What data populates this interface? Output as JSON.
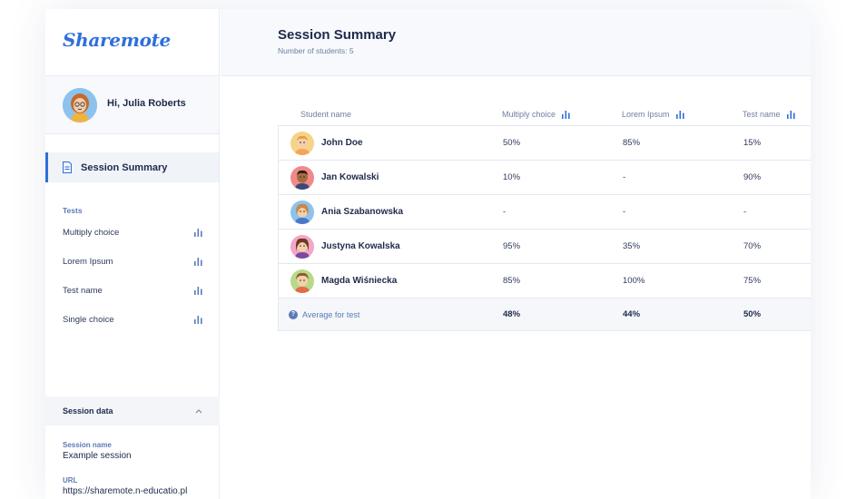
{
  "app": {
    "logo": "Sharemote"
  },
  "user": {
    "greeting": "Hi, Julia Roberts"
  },
  "nav": {
    "active_label": "Session Summary"
  },
  "tests": {
    "title": "Tests",
    "items": [
      {
        "label": "Multiply choice"
      },
      {
        "label": "Lorem Ipsum"
      },
      {
        "label": "Test name"
      },
      {
        "label": "Single choice"
      }
    ]
  },
  "session_data": {
    "title": "Session data",
    "name_label": "Session name",
    "name_value": "Example session",
    "url_label": "URL",
    "url_value": "https://sharemote.n-educatio.pl"
  },
  "header": {
    "title": "Session Summary",
    "subtitle": "Number of students: 5"
  },
  "table": {
    "columns": [
      "Student name",
      "Multiply choice",
      "Lorem Ipsum",
      "Test name"
    ],
    "rows": [
      {
        "name": "John Doe",
        "a": "50%",
        "b": "85%",
        "c": "15%"
      },
      {
        "name": "Jan Kowalski",
        "a": "10%",
        "b": "-",
        "c": "90%"
      },
      {
        "name": "Ania Szabanowska",
        "a": "-",
        "b": "-",
        "c": "-"
      },
      {
        "name": "Justyna Kowalska",
        "a": "95%",
        "b": "35%",
        "c": "70%"
      },
      {
        "name": "Magda Wiśniecka",
        "a": "85%",
        "b": "100%",
        "c": "75%"
      }
    ],
    "average": {
      "label": "Average for test",
      "a": "48%",
      "b": "44%",
      "c": "50%"
    }
  },
  "colors": {
    "accent": "#2f6fdb",
    "text": "#1e2a4a",
    "muted": "#6f7fa0"
  }
}
